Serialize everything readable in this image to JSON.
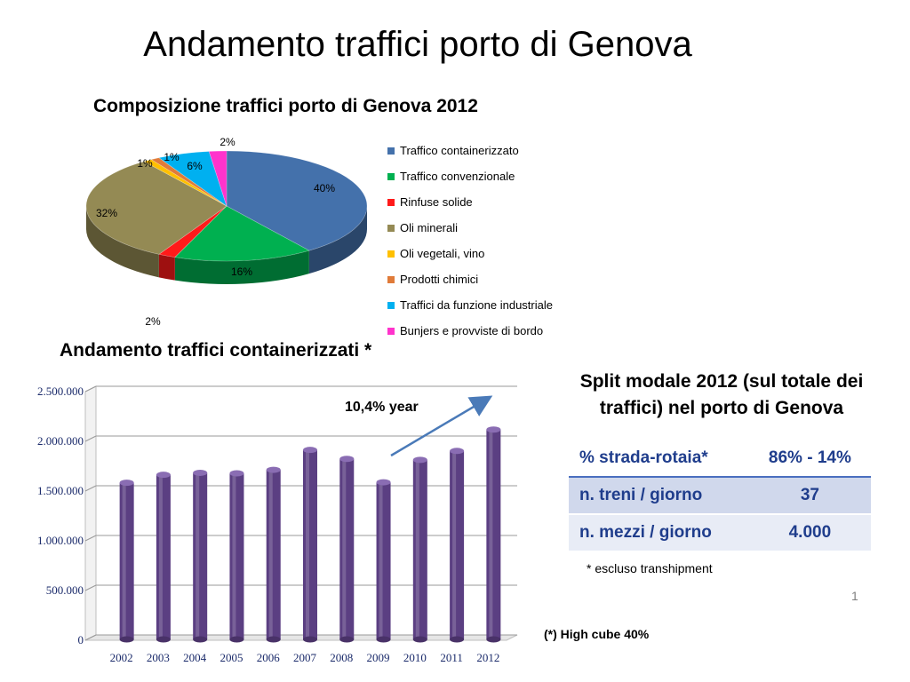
{
  "page": {
    "title": "Andamento traffici porto di Genova",
    "slide_number": "1"
  },
  "chart_data": [
    {
      "type": "pie",
      "title": "Composizione traffici porto di Genova 2012",
      "legend_placement": "right",
      "slices": [
        {
          "name": "Traffico containerizzato",
          "value": 40,
          "label": "40%",
          "color": "#4471ab"
        },
        {
          "name": "Traffico convenzionale",
          "value": 16,
          "label": "16%",
          "color": "#00b050"
        },
        {
          "name": "Rinfuse solide",
          "value": 2,
          "label": "2%",
          "color": "#ff1a1a"
        },
        {
          "name": "Oli minerali",
          "value": 32,
          "label": "32%",
          "color": "#948a54"
        },
        {
          "name": "Oli vegetali, vino",
          "value": 1,
          "label": "1%",
          "color": "#ffc000"
        },
        {
          "name": "Prodotti chimici",
          "value": 1,
          "label": "1%",
          "color": "#e07b39"
        },
        {
          "name": "Traffici da funzione industriale",
          "value": 6,
          "label": "6%",
          "color": "#00b0f0"
        },
        {
          "name": "Bunjers e provviste di bordo",
          "value": 2,
          "label": "2%",
          "color": "#ff33cc"
        }
      ]
    },
    {
      "type": "bar",
      "title": "Andamento traffici containerizzati *",
      "categories": [
        "2002",
        "2003",
        "2004",
        "2005",
        "2006",
        "2007",
        "2008",
        "2009",
        "2010",
        "2011",
        "2012"
      ],
      "values": [
        1530000,
        1610000,
        1630000,
        1625000,
        1660000,
        1860000,
        1770000,
        1535000,
        1760000,
        1850000,
        2065000
      ],
      "ylim": [
        0,
        2500000
      ],
      "yticks": [
        "0",
        "500.000",
        "1.000.000",
        "1.500.000",
        "2.000.000",
        "2.500.000"
      ],
      "ytick_values": [
        0,
        500000,
        1000000,
        1500000,
        2000000,
        2500000
      ],
      "grid": true,
      "bar_color": "#5b3f82",
      "annotation": "10,4% year",
      "note": "(*) High cube 40%"
    }
  ],
  "split": {
    "title": "Split modale 2012 (sul totale dei traffici)  nel porto di Genova",
    "rows": [
      {
        "label": "% strada-rotaia*",
        "value": "86% - 14%"
      },
      {
        "label": "n. treni / giorno",
        "value": "37"
      },
      {
        "label": "n. mezzi / giorno",
        "value": "4.000"
      }
    ],
    "note": "* escluso transhipment"
  }
}
